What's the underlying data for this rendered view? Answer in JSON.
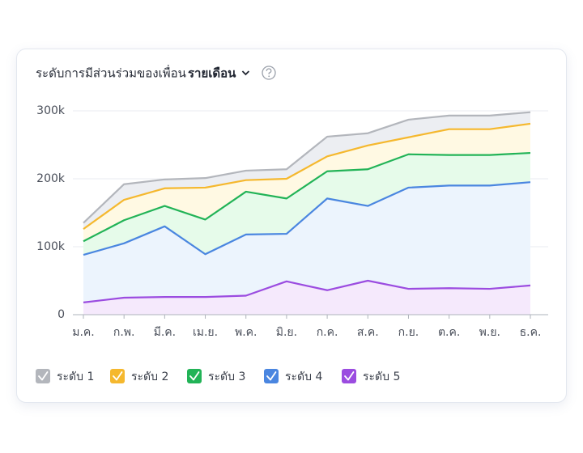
{
  "chart_data": {
    "type": "stacked-area",
    "title": "ระดับการมีส่วนร่วมของเพื่อน",
    "period": "รายเดือน",
    "categories": [
      "ม.ค.",
      "ก.พ.",
      "มี.ค.",
      "เม.ย.",
      "พ.ค.",
      "มิ.ย.",
      "ก.ค.",
      "ส.ค.",
      "ก.ย.",
      "ต.ค.",
      "พ.ย.",
      "ธ.ค."
    ],
    "series": [
      {
        "name": "ระดับ 1",
        "color": "#b3b6bc",
        "fill": "#eceef2",
        "values": [
          9000,
          23000,
          13000,
          14000,
          14000,
          14000,
          29000,
          18000,
          26000,
          20000,
          20000,
          17000
        ]
      },
      {
        "name": "ระดับ 2",
        "color": "#f5b82e",
        "fill": "#fff9e3",
        "values": [
          18000,
          30000,
          26000,
          47000,
          17000,
          29000,
          22000,
          35000,
          25000,
          38000,
          38000,
          43000
        ]
      },
      {
        "name": "ระดับ 3",
        "color": "#22b357",
        "fill": "#e6fbea",
        "values": [
          20000,
          34000,
          30000,
          51000,
          63000,
          52000,
          40000,
          54000,
          49000,
          45000,
          45000,
          43000
        ]
      },
      {
        "name": "ระดับ 4",
        "color": "#4a86e0",
        "fill": "#ecf4fd",
        "values": [
          70000,
          80000,
          104000,
          63000,
          90000,
          70000,
          135000,
          110000,
          149000,
          151000,
          152000,
          152000
        ]
      },
      {
        "name": "ระดับ 5",
        "color": "#9b4ce0",
        "fill": "#f5e9fc",
        "values": [
          18000,
          25000,
          26000,
          26000,
          28000,
          49000,
          36000,
          50000,
          38000,
          39000,
          38000,
          43000
        ]
      }
    ],
    "ylim": [
      0,
      300000
    ],
    "yticks": [
      0,
      {
        "value": 100000,
        "label": "100k"
      },
      {
        "value": 200000,
        "label": "200k"
      },
      {
        "value": 300000,
        "label": "300k"
      }
    ],
    "grid": true
  }
}
